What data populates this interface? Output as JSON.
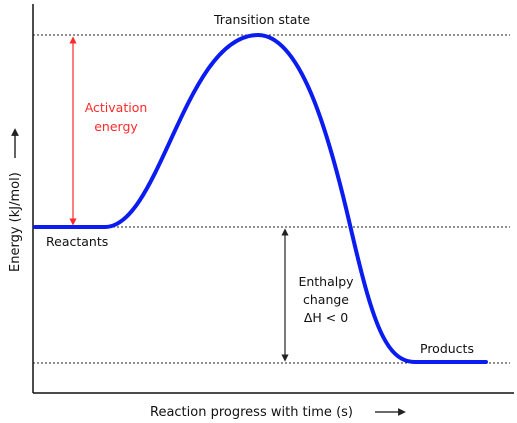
{
  "diagram": {
    "labels": {
      "transition_state": "Transition state",
      "activation_line1": "Activation",
      "activation_line2": "energy",
      "reactants": "Reactants",
      "enthalpy_line1": "Enthalpy",
      "enthalpy_line2": "change",
      "enthalpy_line3": "ΔH < 0",
      "products": "Products"
    },
    "axes": {
      "x_label": "Reaction progress with time (s)",
      "y_label": "Energy (kJ/mol)"
    },
    "colors": {
      "curve": "#0a1cf0",
      "activation_arrow": "#ff2a2a",
      "activation_text": "#ff2a2a",
      "axis": "#111111",
      "dotted_lines": "#222222"
    }
  }
}
